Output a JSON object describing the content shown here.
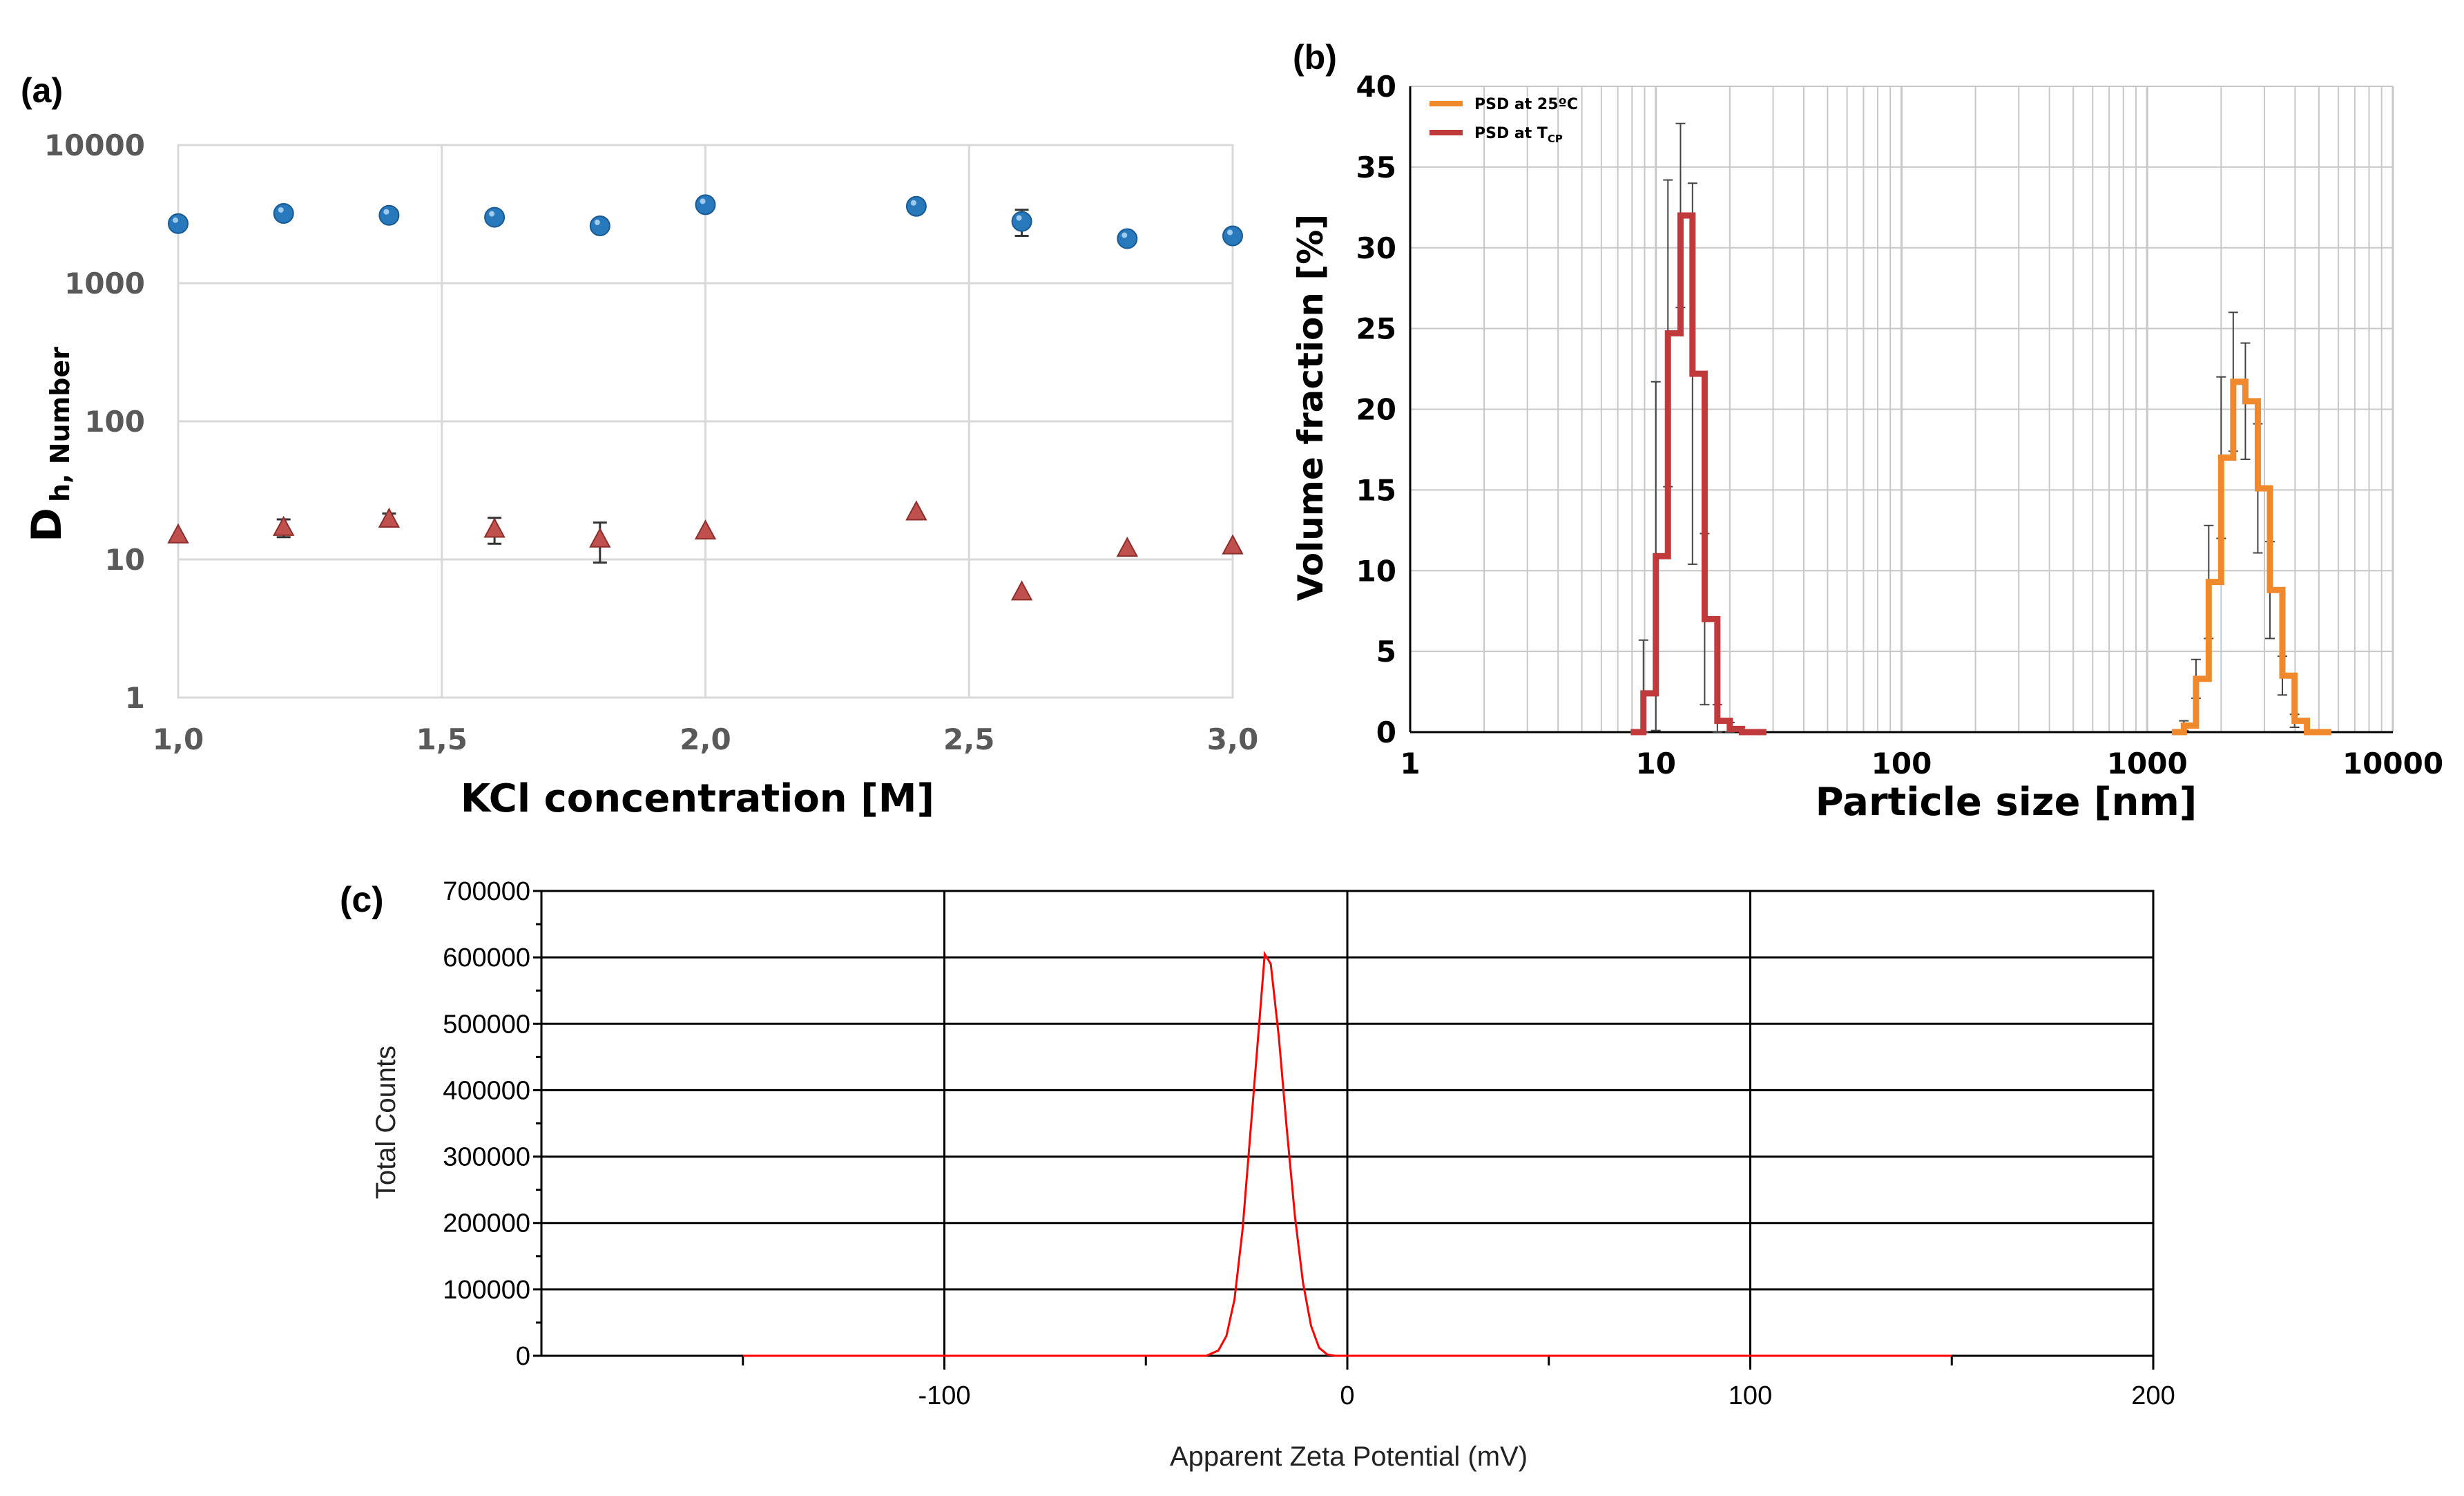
{
  "colors": {
    "circle": "#2878bc",
    "triangle": "#c0504d",
    "psd25": "#f0892c",
    "psdTcp": "#c0393b",
    "zeta": "#ff0000",
    "gridA": "#d9d9d9",
    "gridB": "#c8c8c8"
  },
  "chart_data": [
    {
      "panel": "(a)",
      "type": "scatter",
      "xlabel": "KCl concentration [M]",
      "ylabel_main": "D",
      "ylabel_sub": "h, Number",
      "xlim": [
        1.0,
        3.0
      ],
      "ylim": [
        1,
        10000
      ],
      "yscale": "log",
      "x_ticks": [
        "1,0",
        "1,5",
        "2,0",
        "2,5",
        "3,0"
      ],
      "y_ticks": [
        "1",
        "10",
        "100",
        "1000",
        "10000"
      ],
      "series": [
        {
          "name": "circles",
          "marker": "circle",
          "x": [
            1.0,
            1.2,
            1.4,
            1.6,
            1.8,
            2.0,
            2.4,
            2.6,
            2.8,
            3.0
          ],
          "y": [
            2700,
            3200,
            3100,
            3000,
            2600,
            3700,
            3600,
            2800,
            2100,
            2200
          ],
          "err": [
            0,
            0,
            0,
            0,
            0,
            0,
            0,
            600,
            0,
            0
          ]
        },
        {
          "name": "triangles",
          "marker": "triangle",
          "x": [
            1.0,
            1.2,
            1.4,
            1.6,
            1.8,
            2.0,
            2.4,
            2.6,
            2.8,
            3.0
          ],
          "y": [
            15,
            17,
            19.5,
            16.5,
            14,
            16,
            22,
            5.8,
            12,
            12.5
          ],
          "err": [
            0,
            2.5,
            2,
            3.5,
            4.5,
            0,
            0,
            0,
            0,
            0
          ]
        }
      ]
    },
    {
      "panel": "(b)",
      "type": "line",
      "xlabel": "Particle size [nm]",
      "ylabel": "Volume fraction [%]",
      "xscale": "log",
      "xlim": [
        1,
        10000
      ],
      "ylim": [
        0,
        40
      ],
      "x_ticks": [
        "1",
        "10",
        "100",
        "1000",
        "10000"
      ],
      "y_ticks": [
        "0",
        "5",
        "10",
        "15",
        "20",
        "25",
        "30",
        "35",
        "40"
      ],
      "legend": [
        {
          "label": "PSD at 25ºC",
          "sub": ""
        },
        {
          "label": "PSD at T",
          "sub": "CP"
        }
      ],
      "series": [
        {
          "name": "PSD at 25ºC",
          "x": [
            1260,
            1410,
            1580,
            1780,
            2000,
            2240,
            2510,
            2820,
            3160,
            3550,
            3980,
            4470,
            5010,
            5620
          ],
          "y": [
            0,
            0.4,
            3.3,
            9.3,
            17.0,
            21.7,
            20.5,
            15.1,
            8.8,
            3.5,
            0.7,
            0,
            0,
            0
          ],
          "err": [
            0,
            0.3,
            1.2,
            3.5,
            5.0,
            4.3,
            3.6,
            4.0,
            3.0,
            1.2,
            0.4,
            0,
            0,
            0
          ]
        },
        {
          "name": "PSD at TCP",
          "x": [
            7.9,
            8.9,
            10.0,
            11.2,
            12.6,
            14.1,
            15.8,
            17.8,
            20.0,
            22.4,
            25.1,
            28.2
          ],
          "y": [
            0,
            2.4,
            10.9,
            24.7,
            32.0,
            22.2,
            7.0,
            0.7,
            0.2,
            0,
            0,
            0
          ],
          "err": [
            0,
            3.3,
            10.8,
            9.5,
            5.7,
            11.8,
            5.3,
            1.0,
            0.4,
            0,
            0,
            0
          ]
        }
      ]
    },
    {
      "panel": "(c)",
      "type": "line",
      "xlabel": "Apparent Zeta Potential (mV)",
      "ylabel": "Total Counts",
      "xlim": [
        -200,
        200
      ],
      "ylim": [
        0,
        700000
      ],
      "x_ticks": [
        "-100",
        "0",
        "100",
        "200"
      ],
      "y_ticks": [
        "0",
        "100000",
        "200000",
        "300000",
        "400000",
        "500000",
        "600000",
        "700000"
      ],
      "series": [
        {
          "name": "zeta",
          "x": [
            -150,
            -35,
            -32,
            -30,
            -28,
            -26,
            -24,
            -22,
            -20.5,
            -19,
            -17,
            -15,
            -13,
            -11,
            -9,
            -7,
            -5,
            -3,
            0,
            150
          ],
          "y": [
            0,
            0,
            8000,
            30000,
            85000,
            190000,
            340000,
            490000,
            605000,
            590000,
            480000,
            340000,
            210000,
            110000,
            45000,
            12000,
            2000,
            0,
            0,
            0
          ]
        }
      ]
    }
  ]
}
